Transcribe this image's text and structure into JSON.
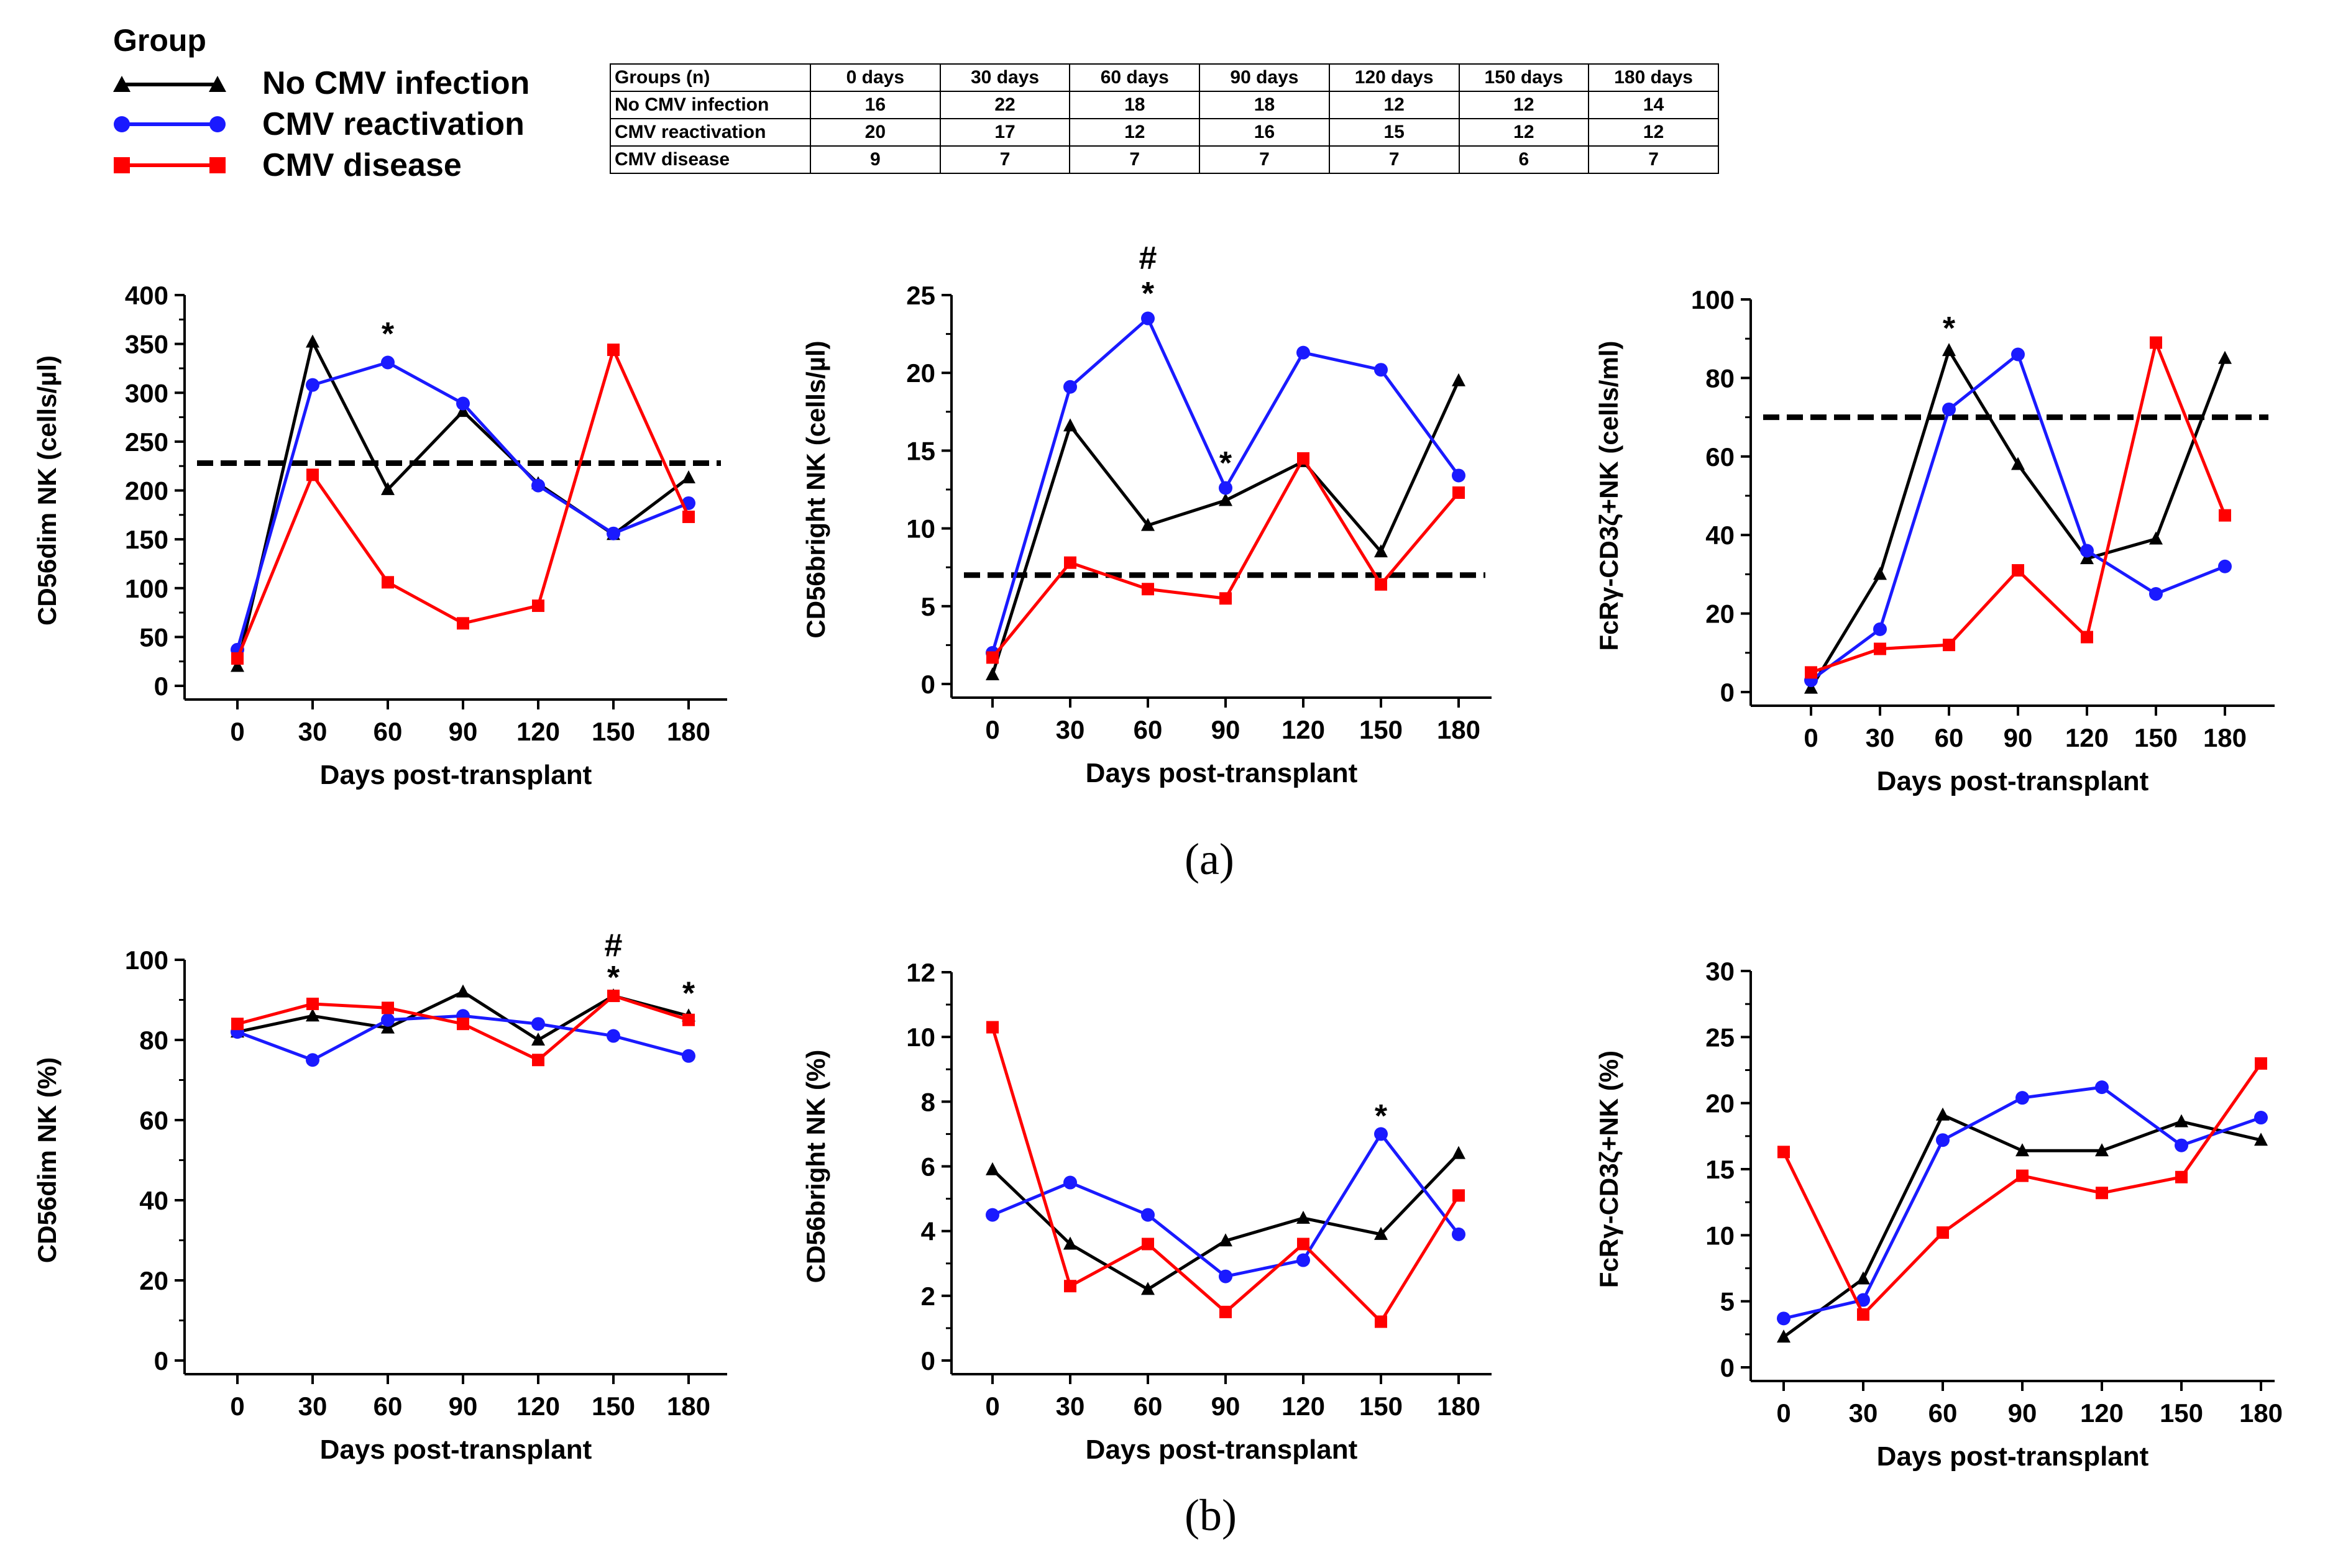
{
  "legend": {
    "title": "Group",
    "items": [
      {
        "label": "No CMV infection",
        "color": "#000000",
        "marker": "triangle"
      },
      {
        "label": "CMV reactivation",
        "color": "#1a1aff",
        "marker": "circle"
      },
      {
        "label": "CMV disease",
        "color": "#ff0000",
        "marker": "square"
      }
    ]
  },
  "n_table": {
    "headers": [
      "Groups (n)",
      "0 days",
      "30 days",
      "60 days",
      "90 days",
      "120 days",
      "150 days",
      "180 days"
    ],
    "rows": [
      [
        "No CMV infection",
        "16",
        "22",
        "18",
        "18",
        "12",
        "12",
        "14"
      ],
      [
        "CMV reactivation",
        "20",
        "17",
        "12",
        "16",
        "15",
        "12",
        "12"
      ],
      [
        "CMV disease",
        "9",
        "7",
        "7",
        "7",
        "7",
        "6",
        "7"
      ]
    ]
  },
  "panel_labels": {
    "a": "(a)",
    "b": "(b)"
  },
  "chart_data": [
    {
      "id": "a1",
      "type": "line",
      "xlabel": "Days post-transplant",
      "ylabel": "CD56dim NK (cells/µl)",
      "categories": [
        0,
        30,
        60,
        90,
        120,
        150,
        180
      ],
      "ylim": [
        0,
        400
      ],
      "yticks": [
        0,
        50,
        100,
        150,
        200,
        250,
        300,
        350,
        400
      ],
      "reference_line": 228,
      "series": [
        {
          "name": "No CMV infection",
          "values": [
            20,
            352,
            201,
            281,
            207,
            155,
            213
          ]
        },
        {
          "name": "CMV reactivation",
          "values": [
            37,
            308,
            331,
            289,
            205,
            156,
            187
          ]
        },
        {
          "name": "CMV disease",
          "values": [
            28,
            216,
            106,
            64,
            82,
            344,
            173
          ]
        }
      ],
      "annotations": [
        {
          "x": 60,
          "text": "*",
          "y": 362
        }
      ]
    },
    {
      "id": "a2",
      "type": "line",
      "xlabel": "Days post-transplant",
      "ylabel": "CD56bright NK (cells/µl)",
      "categories": [
        0,
        30,
        60,
        90,
        120,
        150,
        180
      ],
      "ylim": [
        0,
        25
      ],
      "yticks": [
        0,
        5,
        10,
        15,
        20,
        25
      ],
      "reference_line": 7,
      "series": [
        {
          "name": "No CMV infection",
          "values": [
            0.6,
            16.6,
            10.2,
            11.8,
            14.3,
            8.5,
            19.5
          ]
        },
        {
          "name": "CMV reactivation",
          "values": [
            2.0,
            19.1,
            23.5,
            12.6,
            21.3,
            20.2,
            13.4
          ]
        },
        {
          "name": "CMV disease",
          "values": [
            1.7,
            7.8,
            6.1,
            5.5,
            14.5,
            6.4,
            12.3
          ]
        }
      ],
      "annotations": [
        {
          "x": 60,
          "text": "#",
          "y": 27.5
        },
        {
          "x": 60,
          "text": "*",
          "y": 25.2
        },
        {
          "x": 90,
          "text": "*",
          "y": 14.3
        }
      ]
    },
    {
      "id": "a3",
      "type": "line",
      "xlabel": "Days post-transplant",
      "ylabel": "FcRγ-CD3ζ+NK (cells/ml)",
      "categories": [
        0,
        30,
        60,
        90,
        120,
        150,
        180
      ],
      "ylim": [
        0,
        100
      ],
      "yticks": [
        0,
        20,
        40,
        60,
        80,
        100
      ],
      "reference_line": 70,
      "series": [
        {
          "name": "No CMV infection",
          "values": [
            1,
            30,
            87,
            58,
            34,
            39,
            85
          ]
        },
        {
          "name": "CMV reactivation",
          "values": [
            3,
            16,
            72,
            86,
            36,
            25,
            32
          ]
        },
        {
          "name": "CMV disease",
          "values": [
            5,
            11,
            12,
            31,
            14,
            89,
            45
          ]
        }
      ],
      "annotations": [
        {
          "x": 60,
          "text": "*",
          "y": 93
        }
      ]
    },
    {
      "id": "b1",
      "type": "line",
      "xlabel": "Days post-transplant",
      "ylabel": "CD56dim NK (%)",
      "categories": [
        0,
        30,
        60,
        90,
        120,
        150,
        180
      ],
      "ylim": [
        0,
        100
      ],
      "yticks": [
        0,
        20,
        40,
        60,
        80,
        100
      ],
      "series": [
        {
          "name": "No CMV infection",
          "values": [
            82,
            86,
            83,
            92,
            80,
            91,
            86
          ]
        },
        {
          "name": "CMV reactivation",
          "values": [
            82,
            75,
            85,
            86,
            84,
            81,
            76
          ]
        },
        {
          "name": "CMV disease",
          "values": [
            84,
            89,
            88,
            84,
            75,
            91,
            85
          ]
        }
      ],
      "annotations": [
        {
          "x": 150,
          "text": "#",
          "y": 104
        },
        {
          "x": 150,
          "text": "*",
          "y": 96
        },
        {
          "x": 180,
          "text": "*",
          "y": 92
        }
      ]
    },
    {
      "id": "b2",
      "type": "line",
      "xlabel": "Days post-transplant",
      "ylabel": "CD56bright NK (%)",
      "categories": [
        0,
        30,
        60,
        90,
        120,
        150,
        180
      ],
      "ylim": [
        0,
        12
      ],
      "yticks": [
        0,
        2,
        4,
        6,
        8,
        10,
        12
      ],
      "series": [
        {
          "name": "No CMV infection",
          "values": [
            5.9,
            3.6,
            2.2,
            3.7,
            4.4,
            3.9,
            6.4
          ]
        },
        {
          "name": "CMV reactivation",
          "values": [
            4.5,
            5.5,
            4.5,
            2.6,
            3.1,
            7.0,
            3.9
          ]
        },
        {
          "name": "CMV disease",
          "values": [
            10.3,
            2.3,
            3.6,
            1.5,
            3.6,
            1.2,
            5.1
          ]
        }
      ],
      "annotations": [
        {
          "x": 150,
          "text": "*",
          "y": 7.6
        }
      ]
    },
    {
      "id": "b3",
      "type": "line",
      "xlabel": "Days post-transplant",
      "ylabel": "FcRγ-CD3ζ+NK (%)",
      "categories": [
        0,
        30,
        60,
        90,
        120,
        150,
        180
      ],
      "ylim": [
        0,
        30
      ],
      "yticks": [
        0,
        5,
        10,
        15,
        20,
        25,
        30
      ],
      "series": [
        {
          "name": "No CMV infection",
          "values": [
            2.3,
            6.7,
            19.1,
            16.4,
            16.4,
            18.6,
            17.2
          ]
        },
        {
          "name": "CMV reactivation",
          "values": [
            3.7,
            5.1,
            17.2,
            20.4,
            21.2,
            16.8,
            18.9
          ]
        },
        {
          "name": "CMV disease",
          "values": [
            16.3,
            4.0,
            10.2,
            14.5,
            13.2,
            14.4,
            23.0
          ]
        }
      ],
      "annotations": []
    }
  ]
}
